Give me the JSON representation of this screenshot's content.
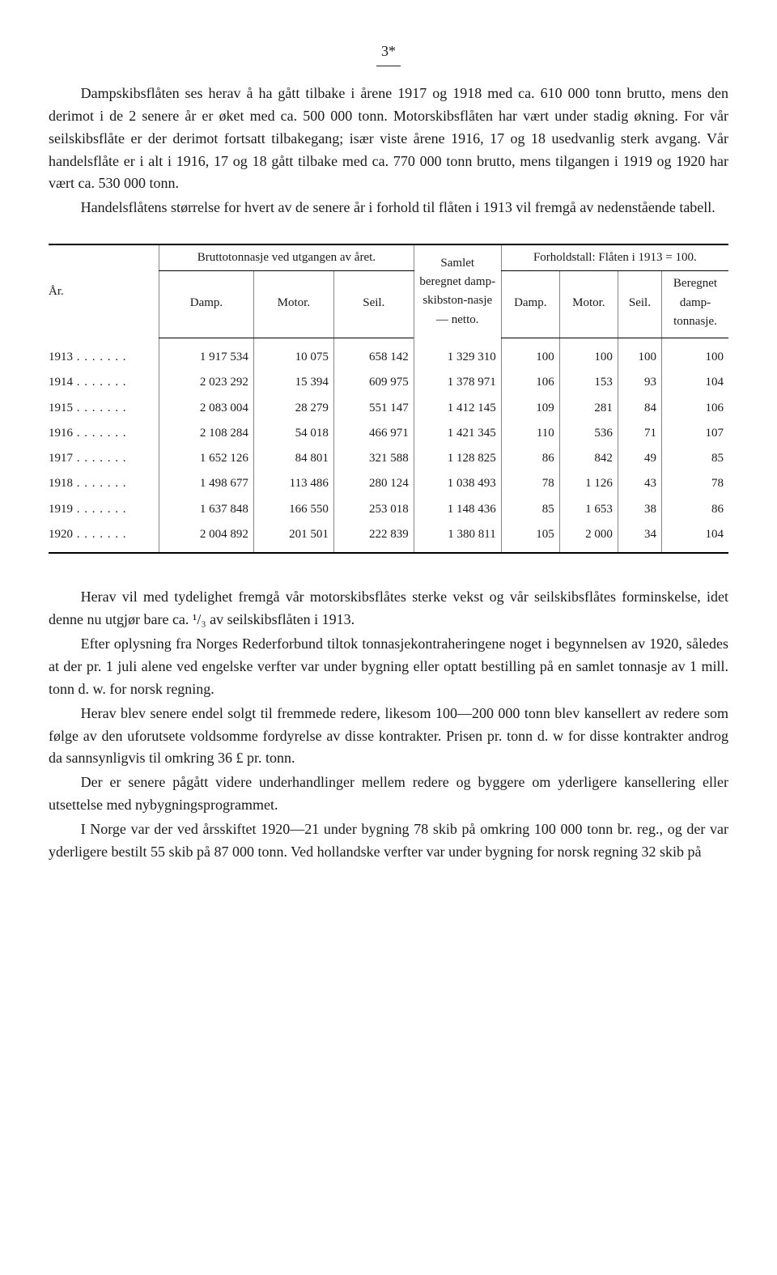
{
  "page_number": "3*",
  "paragraphs_top": [
    "Dampskibsflåten ses herav å ha gått tilbake i årene 1917 og 1918 med ca. 610 000 tonn brutto, mens den derimot i de 2 senere år er øket med ca. 500 000 tonn. Motorskibsflåten har vært under stadig økning. For vår seilskibsflåte er der derimot fortsatt tilbakegang; især viste årene 1916, 17 og 18 usedvanlig sterk avgang. Vår handelsflåte er i alt i 1916, 17 og 18 gått tilbake med ca. 770 000 tonn brutto, mens tilgangen i 1919 og 1920 har vært ca. 530 000 tonn.",
    "Handelsflåtens størrelse for hvert av de senere år i forhold til flåten i 1913 vil fremgå av nedenstående tabell."
  ],
  "table": {
    "col_year": "År.",
    "group_brutto": "Bruttotonnasje ved utgangen av året.",
    "col_damp": "Damp.",
    "col_motor": "Motor.",
    "col_seil": "Seil.",
    "col_samlet": "Samlet beregnet damp-skibston-nasje — netto.",
    "group_forhold": "Forholdstall:\nFlåten i 1913 = 100.",
    "col_damp2": "Damp.",
    "col_motor2": "Motor.",
    "col_seil2": "Seil.",
    "col_beregnet": "Beregnet damp-tonnasje.",
    "rows": [
      {
        "year": "1913",
        "damp": "1 917 534",
        "motor": "10 075",
        "seil": "658 142",
        "samlet": "1 329 310",
        "f_damp": "100",
        "f_motor": "100",
        "f_seil": "100",
        "f_ber": "100"
      },
      {
        "year": "1914",
        "damp": "2 023 292",
        "motor": "15 394",
        "seil": "609 975",
        "samlet": "1 378 971",
        "f_damp": "106",
        "f_motor": "153",
        "f_seil": "93",
        "f_ber": "104"
      },
      {
        "year": "1915",
        "damp": "2 083 004",
        "motor": "28 279",
        "seil": "551 147",
        "samlet": "1 412 145",
        "f_damp": "109",
        "f_motor": "281",
        "f_seil": "84",
        "f_ber": "106"
      },
      {
        "year": "1916",
        "damp": "2 108 284",
        "motor": "54 018",
        "seil": "466 971",
        "samlet": "1 421 345",
        "f_damp": "110",
        "f_motor": "536",
        "f_seil": "71",
        "f_ber": "107"
      },
      {
        "year": "1917",
        "damp": "1 652 126",
        "motor": "84 801",
        "seil": "321 588",
        "samlet": "1 128 825",
        "f_damp": "86",
        "f_motor": "842",
        "f_seil": "49",
        "f_ber": "85"
      },
      {
        "year": "1918",
        "damp": "1 498 677",
        "motor": "113 486",
        "seil": "280 124",
        "samlet": "1 038 493",
        "f_damp": "78",
        "f_motor": "1 126",
        "f_seil": "43",
        "f_ber": "78"
      },
      {
        "year": "1919",
        "damp": "1 637 848",
        "motor": "166 550",
        "seil": "253 018",
        "samlet": "1 148 436",
        "f_damp": "85",
        "f_motor": "1 653",
        "f_seil": "38",
        "f_ber": "86"
      },
      {
        "year": "1920",
        "damp": "2 004 892",
        "motor": "201 501",
        "seil": "222 839",
        "samlet": "1 380 811",
        "f_damp": "105",
        "f_motor": "2 000",
        "f_seil": "34",
        "f_ber": "104"
      }
    ]
  },
  "paragraphs_bottom": [
    "Herav vil med tydelighet fremgå vår motorskibsflåtes sterke vekst og vår seilskibsflåtes forminskelse, idet denne nu utgjør bare ca. ¹/₃ av seilskibsflåten i 1913.",
    "Efter oplysning fra Norges Rederforbund tiltok tonnasjekontraheringene noget i begynnelsen av 1920, således at der pr. 1 juli alene ved engelske verfter var under bygning eller optatt bestilling på en samlet tonnasje av 1 mill. tonn d. w. for norsk regning.",
    "Herav blev senere endel solgt til fremmede redere, likesom 100—200 000 tonn blev kansellert av redere som følge av den uforutsete voldsomme fordyrelse av disse kontrakter. Prisen pr. tonn d. w for disse kontrakter androg da sannsynligvis til omkring 36 £ pr. tonn.",
    "Der er senere pågått videre underhandlinger mellem redere og byggere om yderligere kansellering eller utsettelse med nybygningsprogrammet.",
    "I Norge var der ved årsskiftet 1920—21 under bygning 78 skib på omkring 100 000 tonn br. reg., og der var yderligere bestilt 55 skib på 87 000 tonn. Ved hollandske verfter var under bygning for norsk regning 32 skib på"
  ]
}
